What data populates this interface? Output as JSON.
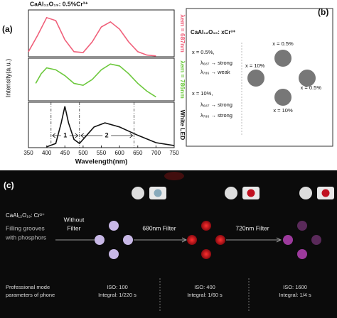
{
  "panel_labels": [
    "(a)",
    "(b)",
    "(c)"
  ],
  "chart_data": [
    {
      "type": "line",
      "title": "CaAl₁₂O₁₉: 0.5%Cr³⁺",
      "ylabel": "Intensity(a.u.)",
      "x": [
        350,
        375,
        400,
        425,
        450,
        475,
        500,
        525,
        550,
        575,
        600,
        625,
        650,
        675,
        700
      ],
      "series": [
        {
          "name": "λem = 687nm",
          "color": "#f0607a",
          "values": [
            0.12,
            0.5,
            0.92,
            0.85,
            0.4,
            0.12,
            0.1,
            0.35,
            0.7,
            0.82,
            0.65,
            0.35,
            0.12,
            0.04,
            0.02
          ]
        }
      ],
      "xlim": [
        350,
        750
      ],
      "ylim": [
        0,
        1.1
      ]
    },
    {
      "type": "line",
      "x": [
        370,
        385,
        400,
        425,
        450,
        475,
        500,
        525,
        550,
        575,
        600,
        625,
        650,
        675,
        700
      ],
      "series": [
        {
          "name": "λem = 786nm",
          "color": "#6cc83c",
          "values": [
            0.45,
            0.7,
            0.85,
            0.8,
            0.65,
            0.45,
            0.4,
            0.55,
            0.8,
            0.95,
            0.9,
            0.7,
            0.45,
            0.25,
            0.1
          ]
        }
      ],
      "xlim": [
        350,
        750
      ],
      "ylim": [
        0,
        1.1
      ]
    },
    {
      "type": "line",
      "xlabel": "Wavelength(nm)",
      "x": [
        400,
        425,
        440,
        450,
        460,
        475,
        490,
        510,
        530,
        560,
        600,
        650,
        700,
        750
      ],
      "series": [
        {
          "name": "White LED",
          "color": "#111111",
          "values": [
            0.02,
            0.1,
            0.6,
            1.0,
            0.6,
            0.2,
            0.1,
            0.3,
            0.5,
            0.6,
            0.5,
            0.3,
            0.12,
            0.05
          ]
        }
      ],
      "xlim": [
        350,
        750
      ],
      "ylim": [
        0,
        1.1
      ],
      "xticks": [
        350,
        400,
        450,
        500,
        550,
        600,
        650,
        700,
        750
      ],
      "reference_lines": [
        412,
        490,
        640
      ],
      "annotations": [
        "1",
        "2"
      ]
    }
  ],
  "panel_b": {
    "title": "CaAl₁₂O₁₉: xCr³⁺",
    "lines": [
      "x = 0.5%,",
      "λ₆₈₇ → strong",
      "λ₇₈₆ → weak",
      "x = 10%,",
      "λ₆₈₇ → strong",
      "λ₇₈₆ → strong"
    ],
    "circle_labels": [
      "x = 0.5%",
      "x = 10%",
      "x = 0.5%",
      "x = 10%"
    ]
  },
  "panel_c": {
    "title": "CaAl₁₂O₁₉: Cr³⁺",
    "caption": [
      "Filling grooves",
      "with phosphors"
    ],
    "filters": [
      [
        "Without",
        "Filter"
      ],
      [
        "680nm Filter"
      ],
      [
        "720nm Filter"
      ]
    ],
    "footer": [
      "Professional mode",
      "parameters of phone"
    ],
    "settings": [
      [
        "ISO: 100",
        "Integral: 1/220 s"
      ],
      [
        "ISO: 400",
        "Integral: 1/60 s"
      ],
      [
        "ISO: 1600",
        "Integral: 1/4 s"
      ]
    ]
  }
}
